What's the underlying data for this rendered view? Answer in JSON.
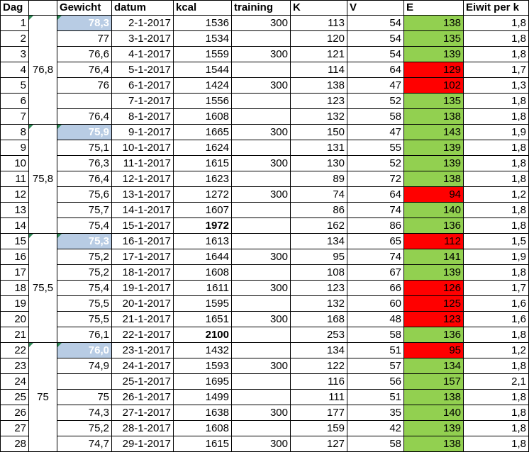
{
  "headers": [
    "Dag",
    "",
    "Gewicht",
    "datum",
    "kcal",
    "training",
    "K",
    "V",
    "E",
    "Eiwit per k"
  ],
  "rows": [
    {
      "dag": "1",
      "gewicht": "78,3",
      "datum": "2-1-2017",
      "kcal": "1536",
      "training": "300",
      "k": "113",
      "v": "54",
      "e": "138",
      "eiwit": "1,8",
      "e_status": "green",
      "w_hl": true
    },
    {
      "dag": "2",
      "gewicht": "77",
      "datum": "3-1-2017",
      "kcal": "1534",
      "training": "",
      "k": "120",
      "v": "54",
      "e": "135",
      "eiwit": "1,8",
      "e_status": "green"
    },
    {
      "dag": "3",
      "gewicht": "76,6",
      "datum": "4-1-2017",
      "kcal": "1559",
      "training": "300",
      "k": "121",
      "v": "54",
      "e": "139",
      "eiwit": "1,8",
      "e_status": "green"
    },
    {
      "dag": "4",
      "gewicht": "76,4",
      "datum": "5-1-2017",
      "kcal": "1544",
      "training": "",
      "k": "114",
      "v": "64",
      "e": "129",
      "eiwit": "1,7",
      "e_status": "red"
    },
    {
      "dag": "5",
      "gewicht": "76",
      "datum": "6-1-2017",
      "kcal": "1424",
      "training": "300",
      "k": "138",
      "v": "47",
      "e": "102",
      "eiwit": "1,3",
      "e_status": "red"
    },
    {
      "dag": "6",
      "gewicht": "",
      "datum": "7-1-2017",
      "kcal": "1556",
      "training": "",
      "k": "123",
      "v": "52",
      "e": "135",
      "eiwit": "1,8",
      "e_status": "green"
    },
    {
      "dag": "7",
      "gewicht": "76,4",
      "datum": "8-1-2017",
      "kcal": "1608",
      "training": "",
      "k": "132",
      "v": "58",
      "e": "138",
      "eiwit": "1,8",
      "e_status": "green"
    },
    {
      "dag": "8",
      "gewicht": "75,9",
      "datum": "9-1-2017",
      "kcal": "1665",
      "training": "300",
      "k": "150",
      "v": "47",
      "e": "143",
      "eiwit": "1,9",
      "e_status": "green",
      "w_hl": true
    },
    {
      "dag": "9",
      "gewicht": "75,1",
      "datum": "10-1-2017",
      "kcal": "1624",
      "training": "",
      "k": "131",
      "v": "55",
      "e": "139",
      "eiwit": "1,8",
      "e_status": "green"
    },
    {
      "dag": "10",
      "gewicht": "76,3",
      "datum": "11-1-2017",
      "kcal": "1615",
      "training": "300",
      "k": "130",
      "v": "52",
      "e": "139",
      "eiwit": "1,8",
      "e_status": "green"
    },
    {
      "dag": "11",
      "gewicht": "76,4",
      "datum": "12-1-2017",
      "kcal": "1623",
      "training": "",
      "k": "89",
      "v": "72",
      "e": "138",
      "eiwit": "1,8",
      "e_status": "green"
    },
    {
      "dag": "12",
      "gewicht": "75,6",
      "datum": "13-1-2017",
      "kcal": "1272",
      "training": "300",
      "k": "74",
      "v": "64",
      "e": "94",
      "eiwit": "1,2",
      "e_status": "red"
    },
    {
      "dag": "13",
      "gewicht": "75,7",
      "datum": "14-1-2017",
      "kcal": "1607",
      "training": "",
      "k": "86",
      "v": "74",
      "e": "140",
      "eiwit": "1,8",
      "e_status": "green"
    },
    {
      "dag": "14",
      "gewicht": "75,4",
      "datum": "15-1-2017",
      "kcal": "1972",
      "training": "",
      "k": "162",
      "v": "86",
      "e": "136",
      "eiwit": "1,8",
      "e_status": "green",
      "kcal_bold": true
    },
    {
      "dag": "15",
      "gewicht": "75,3",
      "datum": "16-1-2017",
      "kcal": "1613",
      "training": "",
      "k": "134",
      "v": "65",
      "e": "112",
      "eiwit": "1,5",
      "e_status": "red",
      "w_hl": true
    },
    {
      "dag": "16",
      "gewicht": "75,2",
      "datum": "17-1-2017",
      "kcal": "1644",
      "training": "300",
      "k": "95",
      "v": "74",
      "e": "141",
      "eiwit": "1,9",
      "e_status": "green"
    },
    {
      "dag": "17",
      "gewicht": "75,2",
      "datum": "18-1-2017",
      "kcal": "1608",
      "training": "",
      "k": "108",
      "v": "67",
      "e": "139",
      "eiwit": "1,8",
      "e_status": "green"
    },
    {
      "dag": "18",
      "gewicht": "75,4",
      "datum": "19-1-2017",
      "kcal": "1611",
      "training": "300",
      "k": "123",
      "v": "66",
      "e": "126",
      "eiwit": "1,7",
      "e_status": "red"
    },
    {
      "dag": "19",
      "gewicht": "75,5",
      "datum": "20-1-2017",
      "kcal": "1595",
      "training": "",
      "k": "132",
      "v": "60",
      "e": "125",
      "eiwit": "1,6",
      "e_status": "red"
    },
    {
      "dag": "20",
      "gewicht": "75,5",
      "datum": "21-1-2017",
      "kcal": "1651",
      "training": "300",
      "k": "168",
      "v": "48",
      "e": "123",
      "eiwit": "1,6",
      "e_status": "red"
    },
    {
      "dag": "21",
      "gewicht": "76,1",
      "datum": "22-1-2017",
      "kcal": "2100",
      "training": "",
      "k": "253",
      "v": "58",
      "e": "136",
      "eiwit": "1,8",
      "e_status": "green",
      "kcal_bold": true
    },
    {
      "dag": "22",
      "gewicht": "76,0",
      "datum": "23-1-2017",
      "kcal": "1432",
      "training": "",
      "k": "134",
      "v": "51",
      "e": "95",
      "eiwit": "1,2",
      "e_status": "red",
      "w_hl": true
    },
    {
      "dag": "23",
      "gewicht": "74,9",
      "datum": "24-1-2017",
      "kcal": "1593",
      "training": "300",
      "k": "122",
      "v": "57",
      "e": "134",
      "eiwit": "1,8",
      "e_status": "green"
    },
    {
      "dag": "24",
      "gewicht": "",
      "datum": "25-1-2017",
      "kcal": "1695",
      "training": "",
      "k": "116",
      "v": "56",
      "e": "157",
      "eiwit": "2,1",
      "e_status": "green"
    },
    {
      "dag": "25",
      "gewicht": "75",
      "datum": "26-1-2017",
      "kcal": "1499",
      "training": "",
      "k": "111",
      "v": "51",
      "e": "138",
      "eiwit": "1,8",
      "e_status": "green"
    },
    {
      "dag": "26",
      "gewicht": "74,3",
      "datum": "27-1-2017",
      "kcal": "1638",
      "training": "300",
      "k": "177",
      "v": "35",
      "e": "140",
      "eiwit": "1,8",
      "e_status": "green"
    },
    {
      "dag": "27",
      "gewicht": "75,2",
      "datum": "28-1-2017",
      "kcal": "1608",
      "training": "",
      "k": "159",
      "v": "42",
      "e": "139",
      "eiwit": "1,8",
      "e_status": "green"
    },
    {
      "dag": "28",
      "gewicht": "74,7",
      "datum": "29-1-2017",
      "kcal": "1615",
      "training": "300",
      "k": "127",
      "v": "58",
      "e": "138",
      "eiwit": "1,8",
      "e_status": "green"
    }
  ],
  "week_averages": [
    "76,8",
    "75,8",
    "75,5",
    "75"
  ],
  "colors": {
    "green": "#92d050",
    "red": "#ff0000",
    "highlight": "#b8cce4"
  }
}
